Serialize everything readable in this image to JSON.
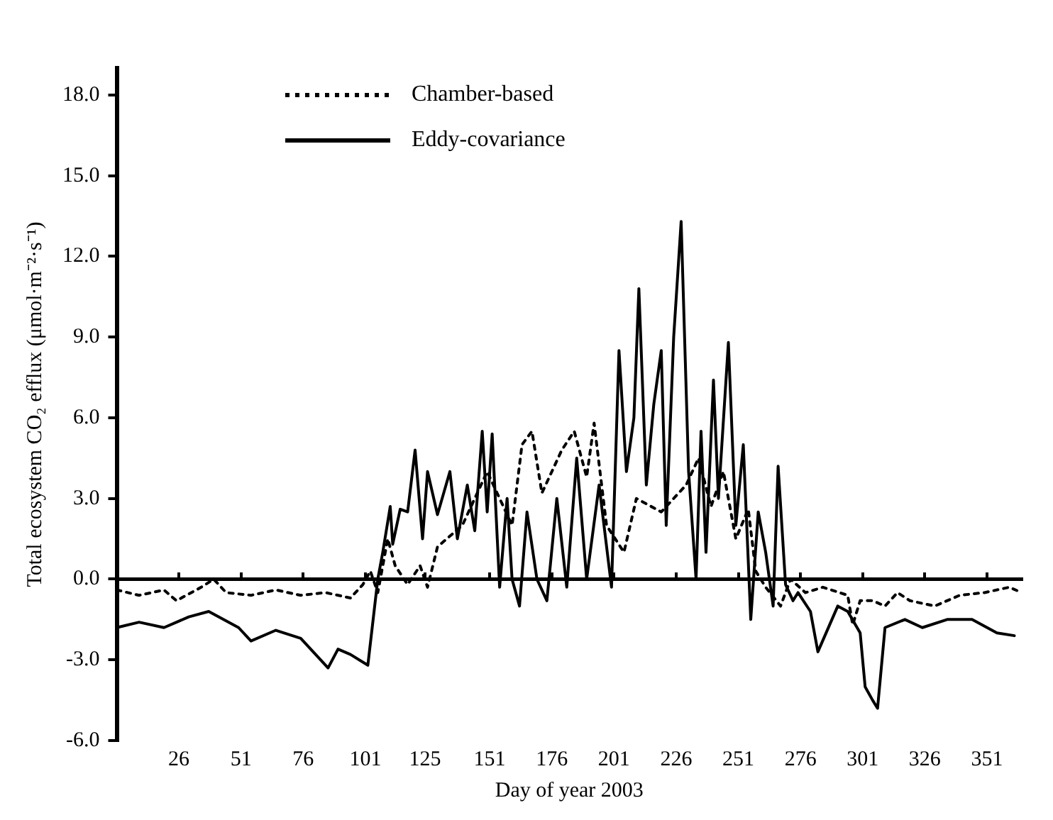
{
  "chart_data": {
    "type": "line",
    "xlabel": "Day of year 2003",
    "ylabel": "Total ecosystem CO₂ efflux (μmol·m⁻²·s⁻¹)",
    "xlim": [
      1,
      365
    ],
    "xticks": [
      26,
      51,
      76,
      101,
      125,
      151,
      176,
      201,
      226,
      251,
      276,
      301,
      326,
      351
    ],
    "ylim": [
      -6,
      19
    ],
    "yticks": [
      {
        "value": -6,
        "label": "-6.0"
      },
      {
        "value": -3,
        "label": "-3.0"
      },
      {
        "value": 0,
        "label": "0.0"
      },
      {
        "value": 3,
        "label": "3.0"
      },
      {
        "value": 6,
        "label": "6.0"
      },
      {
        "value": 9,
        "label": "9.0"
      },
      {
        "value": 12,
        "label": "12.0"
      },
      {
        "value": 15,
        "label": "15.0"
      },
      {
        "value": 18,
        "label": "18.0"
      }
    ],
    "legend": "top left",
    "marker": "none",
    "series": [
      {
        "name": "Chamber-based",
        "color": "#000000",
        "line_style": "dotted",
        "x": [
          1,
          10,
          20,
          25,
          35,
          40,
          45,
          55,
          65,
          75,
          85,
          95,
          100,
          103,
          106,
          110,
          113,
          118,
          123,
          126,
          130,
          140,
          150,
          155,
          160,
          164,
          168,
          172,
          180,
          185,
          190,
          193,
          198,
          205,
          210,
          220,
          230,
          235,
          240,
          245,
          250,
          255,
          258,
          262,
          268,
          272,
          278,
          285,
          295,
          297,
          300,
          305,
          310,
          315,
          320,
          330,
          340,
          350,
          360,
          365
        ],
        "values": [
          -0.4,
          -0.6,
          -0.4,
          -0.8,
          -0.3,
          0,
          -0.5,
          -0.6,
          -0.4,
          -0.6,
          -0.5,
          -0.7,
          -0.2,
          0.3,
          -0.5,
          1.5,
          0.5,
          -0.2,
          0.5,
          -0.3,
          1.2,
          2,
          4,
          3,
          2,
          5,
          5.5,
          3.2,
          4.8,
          5.5,
          3.8,
          5.8,
          2,
          1,
          3,
          2.5,
          3.5,
          4.5,
          2.7,
          4,
          1.5,
          2.6,
          0.3,
          -0.3,
          -1,
          0,
          -0.5,
          -0.3,
          -0.6,
          -1.7,
          -0.8,
          -0.8,
          -1,
          -0.5,
          -0.8,
          -1,
          -0.6,
          -0.5,
          -0.3,
          -0.5
        ]
      },
      {
        "name": "Eddy-covariance",
        "color": "#000000",
        "line_style": "solid",
        "x": [
          1,
          10,
          20,
          30,
          38,
          50,
          55,
          65,
          75,
          86,
          90,
          95,
          102,
          106,
          108,
          111,
          112,
          115,
          118,
          121,
          124,
          126,
          130,
          135,
          138,
          142,
          145,
          148,
          150,
          152,
          155,
          158,
          160,
          163,
          166,
          170,
          174,
          178,
          182,
          186,
          190,
          195,
          200,
          203,
          206,
          209,
          211,
          214,
          217,
          220,
          222,
          225,
          228,
          231,
          234,
          236,
          238,
          241,
          243,
          247,
          250,
          253,
          256,
          259,
          262,
          265,
          267,
          270,
          273,
          275,
          280,
          283,
          291,
          295,
          300,
          302,
          305,
          307,
          310,
          318,
          325,
          335,
          345,
          355,
          362
        ],
        "values": [
          -1.8,
          -1.6,
          -1.8,
          -1.4,
          -1.2,
          -1.8,
          -2.3,
          -1.9,
          -2.2,
          -3.3,
          -2.6,
          -2.8,
          -3.2,
          0,
          1,
          2.7,
          1.3,
          2.6,
          2.5,
          4.8,
          1.5,
          4,
          2.4,
          4,
          1.5,
          3.5,
          1.8,
          5.5,
          2.5,
          5.4,
          -0.3,
          3,
          0,
          -1,
          2.5,
          0,
          -0.8,
          3,
          -0.3,
          4.5,
          0,
          3.5,
          -0.3,
          8.5,
          4,
          6,
          10.8,
          3.5,
          6.5,
          8.5,
          2,
          9,
          13.3,
          4,
          0,
          5.5,
          1,
          7.4,
          3,
          8.8,
          2,
          5,
          -1.5,
          2.5,
          1,
          -1,
          4.2,
          -0.2,
          -0.8,
          -0.5,
          -1.2,
          -2.7,
          -1,
          -1.2,
          -2,
          -4,
          -4.5,
          -4.8,
          -1.8,
          -1.5,
          -1.8,
          -1.5,
          -1.5,
          -2,
          -2.1
        ]
      }
    ]
  }
}
